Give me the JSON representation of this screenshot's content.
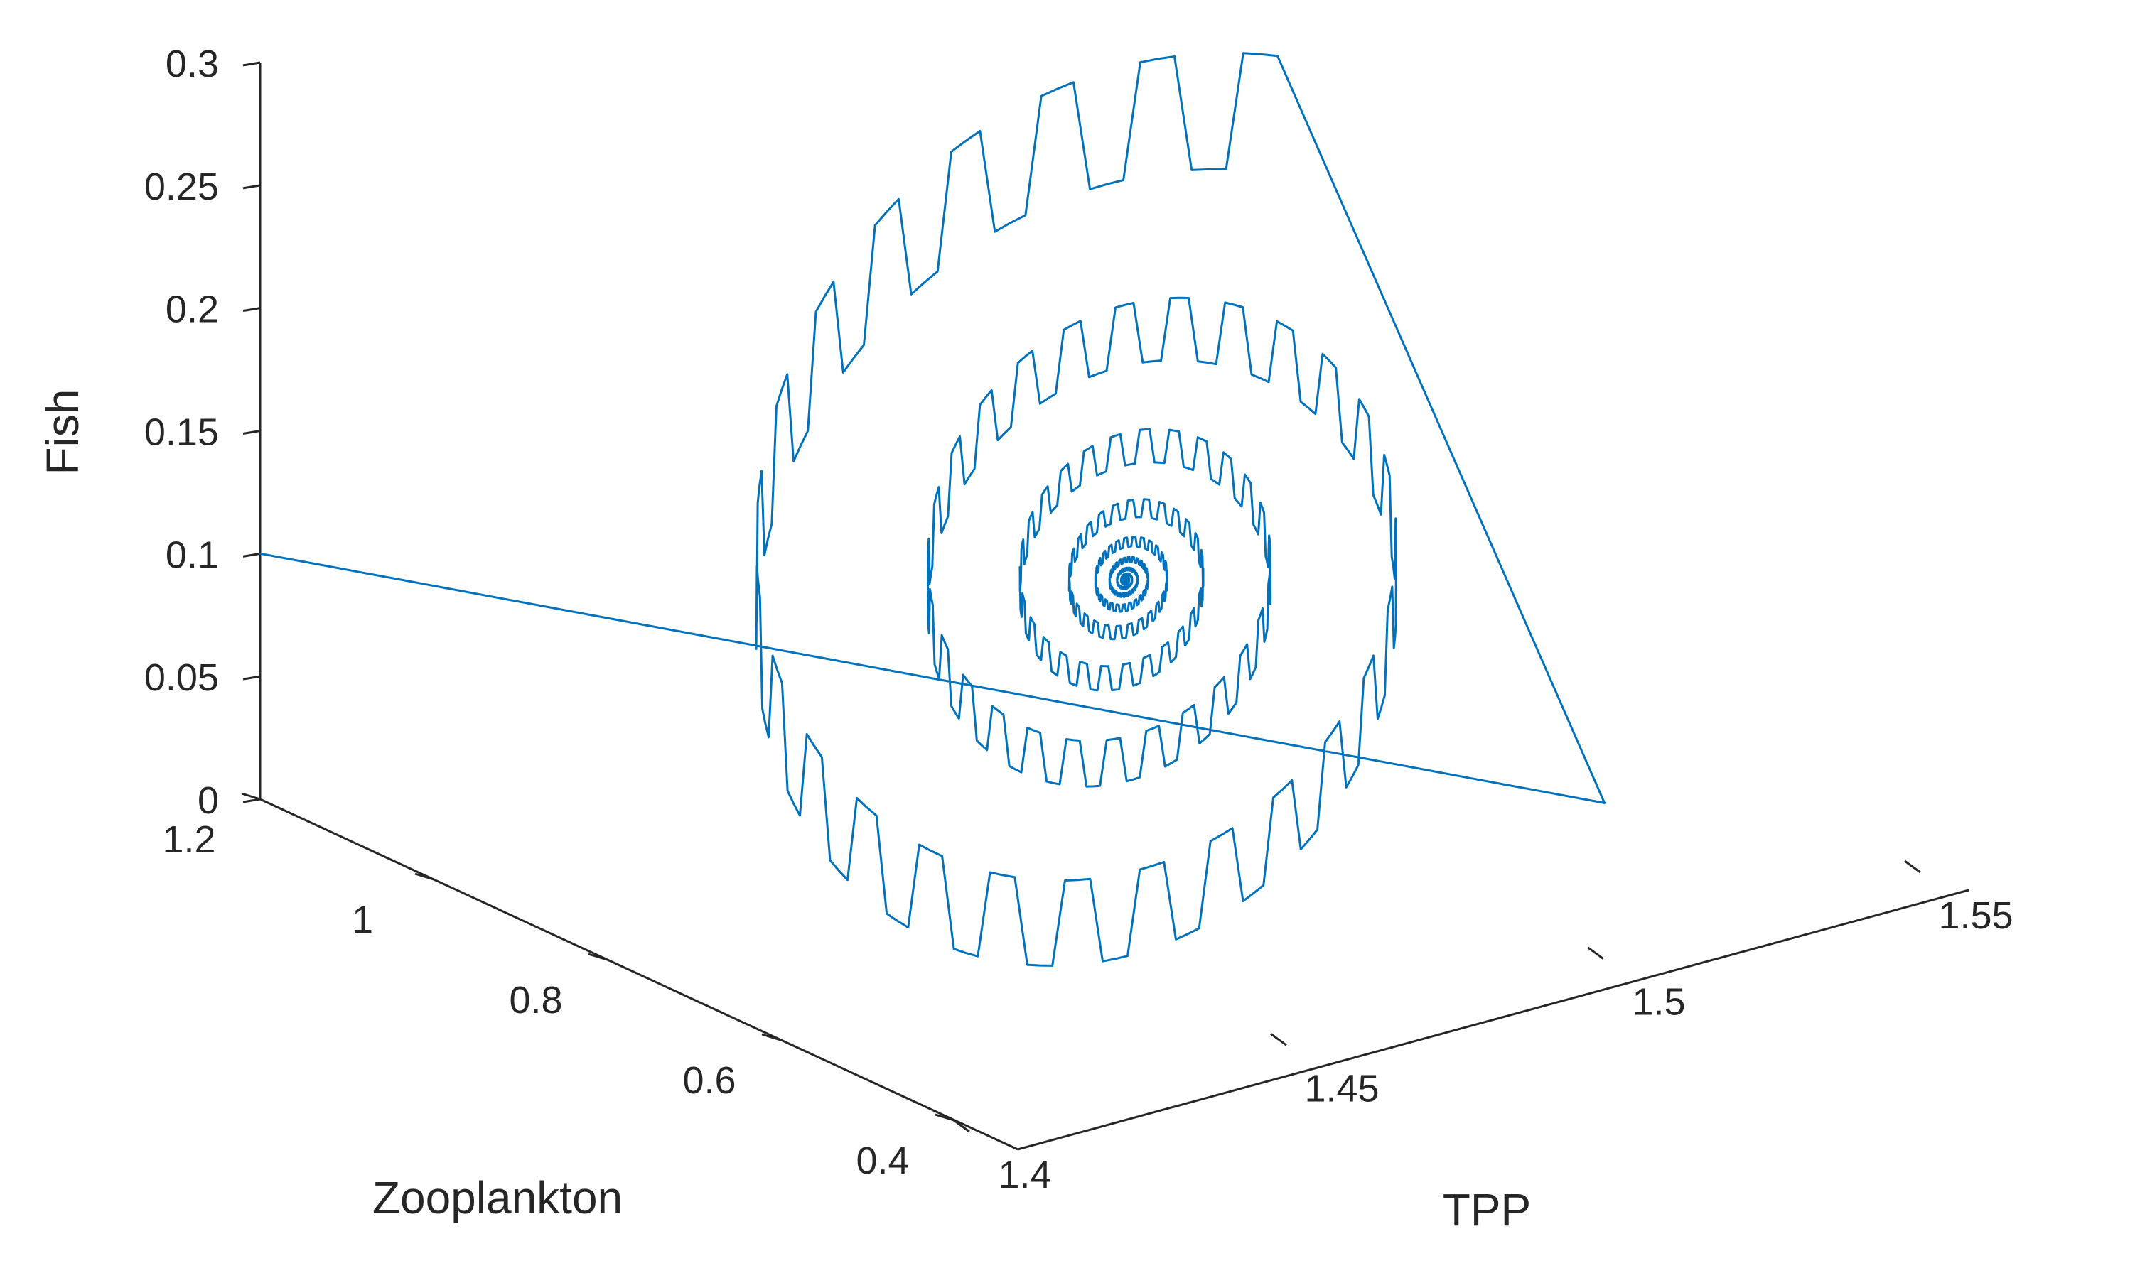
{
  "chart_data": {
    "type": "line",
    "subtype": "3d-trajectory",
    "title": "",
    "xlabel": "TPP",
    "ylabel": "Zooplankton",
    "zlabel": "Fish",
    "xlim": [
      1.4,
      1.55
    ],
    "ylim": [
      0.3,
      1.2
    ],
    "zlim": [
      0,
      0.3
    ],
    "x_ticks": [
      "1.4",
      "1.45",
      "1.5",
      "1.55"
    ],
    "y_ticks": [
      "1.2",
      "1",
      "0.8",
      "0.6",
      "0.4"
    ],
    "z_ticks": [
      "0",
      "0.05",
      "0.1",
      "0.15",
      "0.2",
      "0.25",
      "0.3"
    ],
    "grid": false,
    "series": [
      {
        "color": "#0072BD",
        "initial_point": {
          "tpp": 1.4,
          "zooplankton": 1.2,
          "fish": 0.1
        },
        "equilibrium_point": {
          "tpp": 1.475,
          "zooplankton": 0.75,
          "fish": 0.11
        },
        "shape": "damped spiral converging to equilibrium"
      }
    ]
  }
}
